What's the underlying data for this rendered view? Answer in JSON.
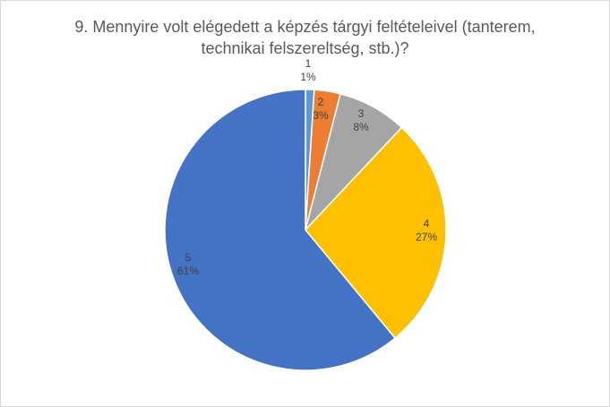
{
  "chart_data": {
    "type": "pie",
    "title_lines": [
      "9. Mennyire volt elégedett  a képzés tárgyi feltételeivel (tanterem,",
      "technikai felszereltség, stb.)?"
    ],
    "slices": [
      {
        "label": "1",
        "value": 1,
        "percent_label": "1%",
        "color": "#5b9bd5"
      },
      {
        "label": "2",
        "value": 3,
        "percent_label": "3%",
        "color": "#ed7d31"
      },
      {
        "label": "3",
        "value": 8,
        "percent_label": "8%",
        "color": "#a5a5a5"
      },
      {
        "label": "4",
        "value": 27,
        "percent_label": "27%",
        "color": "#ffc000"
      },
      {
        "label": "5",
        "value": 61,
        "percent_label": "61%",
        "color": "#4472c4"
      }
    ],
    "start_angle_deg": 0,
    "direction": "clockwise",
    "slice_border_color": "#ffffff",
    "legend": "none"
  }
}
